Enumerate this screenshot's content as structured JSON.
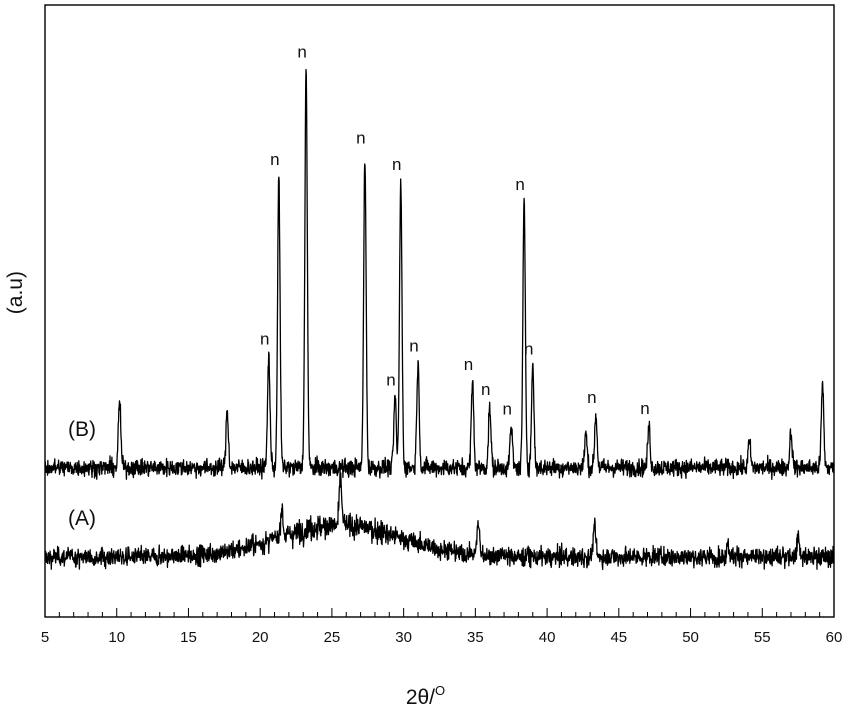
{
  "chart_data": {
    "type": "line",
    "title": "",
    "xlabel": "2θ/",
    "xlabel_superscript": "O",
    "ylabel": "(a.u)",
    "xlim": [
      5,
      60
    ],
    "ylim": [
      0,
      100
    ],
    "x_ticks": [
      "5",
      "10",
      "15",
      "20",
      "25",
      "30",
      "35",
      "40",
      "45",
      "50",
      "55",
      "60"
    ],
    "grid": false,
    "legend": "none",
    "line_color": "#000000",
    "series": [
      {
        "name": "(A)",
        "baseline": 9.8,
        "noise": 1.4,
        "hump": {
          "center": 25.5,
          "width": 4.2,
          "height": 5.2
        },
        "peaks": [
          {
            "x": 21.5,
            "y": 14.6
          },
          {
            "x": 25.6,
            "y": 17.6
          },
          {
            "x": 35.2,
            "y": 15.2
          },
          {
            "x": 43.3,
            "y": 15.0
          },
          {
            "x": 52.6,
            "y": 11.9
          },
          {
            "x": 57.5,
            "y": 12.9
          }
        ]
      },
      {
        "name": "(B)",
        "baseline": 24.4,
        "noise": 1.3,
        "peaks": [
          {
            "x": 10.2,
            "y": 35.3
          },
          {
            "x": 17.7,
            "y": 33.6
          },
          {
            "x": 20.6,
            "y": 42.6,
            "label": "n"
          },
          {
            "x": 21.3,
            "y": 71.9,
            "label": "n"
          },
          {
            "x": 23.2,
            "y": 89.5,
            "label": "n"
          },
          {
            "x": 27.3,
            "y": 75.4,
            "label": "n"
          },
          {
            "x": 29.4,
            "y": 35.9,
            "label": "n"
          },
          {
            "x": 29.8,
            "y": 71.1,
            "label": "n"
          },
          {
            "x": 31.0,
            "y": 41.4,
            "label": "n"
          },
          {
            "x": 34.8,
            "y": 38.4,
            "label": "n"
          },
          {
            "x": 36.0,
            "y": 34.3,
            "label": "n"
          },
          {
            "x": 37.5,
            "y": 31.1,
            "label": "n"
          },
          {
            "x": 38.4,
            "y": 67.8,
            "label": "n"
          },
          {
            "x": 39.0,
            "y": 40.9,
            "label": "n"
          },
          {
            "x": 42.7,
            "y": 30.1
          },
          {
            "x": 43.4,
            "y": 33.0,
            "label": "n"
          },
          {
            "x": 47.1,
            "y": 31.2,
            "label": "n"
          },
          {
            "x": 54.1,
            "y": 28.7
          },
          {
            "x": 57.0,
            "y": 30.3
          },
          {
            "x": 59.2,
            "y": 37.9
          }
        ]
      }
    ]
  }
}
